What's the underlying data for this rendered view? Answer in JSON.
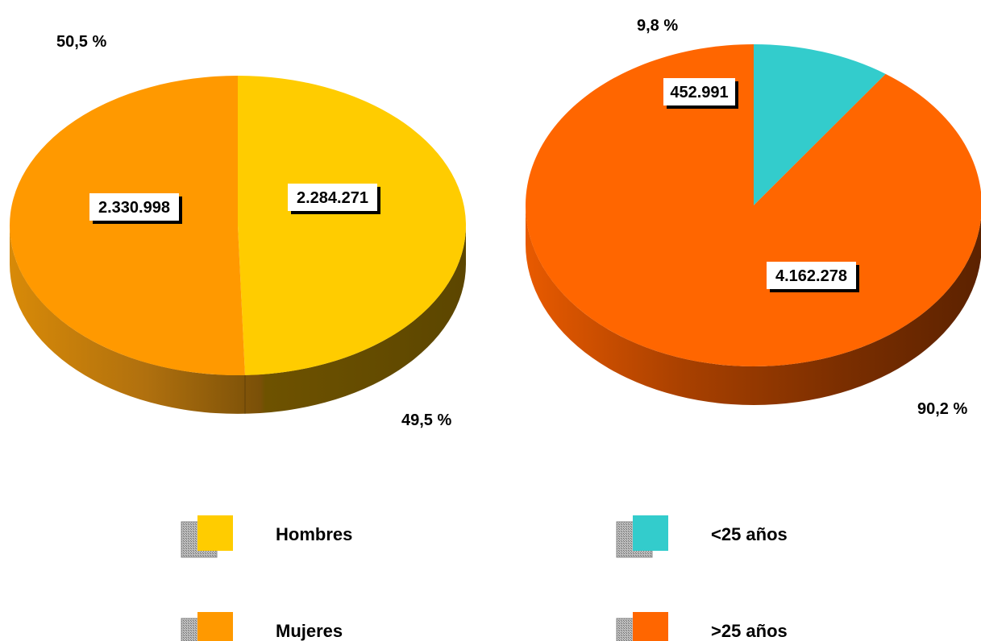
{
  "chart_data": [
    {
      "type": "pie",
      "title": "",
      "slices": [
        {
          "label": "Hombres",
          "value": 2284271,
          "value_label": "2.284.271",
          "percent": 49.5,
          "percent_label": "49,5 %",
          "color": "#ffcc00",
          "side_color": "#6b5200"
        },
        {
          "label": "Mujeres",
          "value": 2330998,
          "value_label": "2.330.998",
          "percent": 50.5,
          "percent_label": "50,5 %",
          "color": "#ff9900",
          "side_color": "#8a5a10"
        }
      ],
      "legend": {
        "position": "bottom"
      }
    },
    {
      "type": "pie",
      "title": "",
      "slices": [
        {
          "label": "<25 años",
          "value": 452991,
          "value_label": "452.991",
          "percent": 9.8,
          "percent_label": "9,8 %",
          "color": "#33cccc",
          "side_color": "#1a6b6b"
        },
        {
          "label": ">25 años",
          "value": 4162278,
          "value_label": "4.162.278",
          "percent": 90.2,
          "percent_label": "90,2 %",
          "color": "#ff6600",
          "side_color": "#7a2e00"
        }
      ],
      "legend": {
        "position": "bottom"
      }
    }
  ]
}
